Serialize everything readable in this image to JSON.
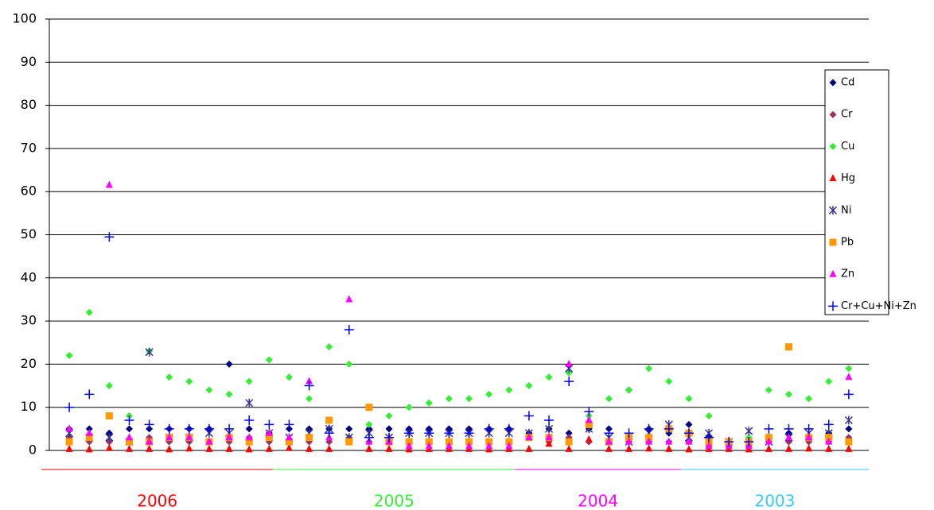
{
  "chart_data": {
    "type": "scatter",
    "x": [
      1,
      2,
      3,
      4,
      5,
      6,
      7,
      8,
      9,
      10,
      11,
      12,
      13,
      14,
      15,
      16,
      17,
      18,
      19,
      20,
      21,
      22,
      23,
      24,
      25,
      26,
      27,
      28,
      29,
      30,
      31,
      32,
      33,
      34,
      35,
      36,
      37,
      38,
      39,
      40
    ],
    "xlim": [
      0,
      41
    ],
    "ylim": [
      0,
      100
    ],
    "yticks": [
      0,
      10,
      20,
      30,
      40,
      50,
      60,
      70,
      80,
      90,
      100
    ],
    "grid": true,
    "legend": "right",
    "series": [
      {
        "name": "Cd",
        "color": "#000080",
        "marker": "diamond",
        "values": [
          5,
          5,
          4,
          5,
          5,
          5,
          5,
          5,
          20,
          5,
          4,
          5,
          5,
          5,
          5,
          5,
          5,
          5,
          5,
          5,
          5,
          5,
          5,
          4,
          5,
          4,
          5,
          5,
          14,
          5,
          4,
          6,
          3,
          2,
          2,
          3,
          4,
          3,
          4,
          5
        ]
      },
      {
        "name": "Cr",
        "color": "#993366",
        "marker": "diamond",
        "values": [
          3,
          2,
          2,
          2,
          3,
          2,
          2,
          2,
          2,
          3,
          2,
          2,
          2,
          2,
          3,
          2,
          2,
          2,
          2,
          2,
          2,
          2,
          2,
          3,
          2,
          3,
          2,
          2,
          2,
          2,
          2,
          2,
          1,
          1,
          1,
          2,
          2,
          2,
          2,
          3
        ]
      },
      {
        "name": "Cu",
        "color": "#33ee33",
        "marker": "diamond",
        "values": [
          22,
          32,
          15,
          8,
          23,
          17,
          16,
          14,
          13,
          16,
          21,
          17,
          12,
          24,
          20,
          6,
          8,
          10,
          11,
          12,
          12,
          13,
          14,
          15,
          17,
          18,
          8,
          12,
          14,
          19,
          16,
          12,
          8,
          2,
          3,
          14,
          13,
          12,
          16,
          19
        ]
      },
      {
        "name": "Hg",
        "color": "#ff0000",
        "marker": "triangle",
        "values": [
          0.3,
          0.2,
          0.5,
          0.3,
          0.3,
          0.2,
          0.4,
          0.3,
          0.3,
          0.2,
          0.3,
          0.5,
          0.3,
          0.3,
          2.5,
          0.3,
          0.3,
          0.2,
          0.3,
          0.3,
          0.3,
          0.2,
          0.3,
          0.3,
          1.5,
          0.3,
          2.5,
          0.3,
          0.3,
          0.4,
          0.3,
          0.2,
          0.3,
          0.3,
          0.2,
          0.3,
          0.3,
          0.4,
          0.3,
          0.3
        ]
      },
      {
        "name": "Ni",
        "color": "#333399",
        "marker": "star",
        "values": [
          4,
          3,
          3,
          2,
          22.8,
          3,
          3,
          4,
          4,
          11,
          4,
          3,
          4,
          5,
          3,
          4,
          3,
          4,
          4,
          4,
          4,
          4,
          4,
          4,
          5,
          19,
          5,
          3,
          2,
          4,
          6,
          3,
          4,
          2,
          4.5,
          2,
          3,
          4,
          4,
          7
        ]
      },
      {
        "name": "Pb",
        "color": "#ff9900",
        "marker": "square",
        "values": [
          2,
          3,
          8,
          2,
          2,
          3,
          3,
          2,
          3,
          2,
          3,
          2,
          3,
          7,
          2,
          10,
          2,
          2,
          2,
          2,
          2,
          2,
          2,
          3,
          3,
          2,
          6,
          2,
          3,
          3,
          5,
          4,
          2,
          2,
          2,
          3,
          24,
          3,
          3,
          2
        ]
      },
      {
        "name": "Zn",
        "color": "#ff00ff",
        "marker": "triangle",
        "values": [
          5,
          4,
          61.5,
          3,
          2,
          3,
          3,
          2,
          3,
          3,
          4,
          3,
          16,
          3,
          35,
          2,
          2,
          1,
          1,
          1,
          1,
          1,
          1,
          3,
          3,
          20,
          7,
          2,
          2,
          2,
          2,
          2,
          1,
          1,
          1,
          2,
          3,
          3,
          2,
          17
        ]
      },
      {
        "name": "Cr+Cu+Ni+Zn",
        "color": "#0000ff",
        "marker": "plus",
        "values": [
          10,
          13,
          49.5,
          7,
          6,
          5,
          5,
          5,
          5,
          7,
          6,
          6,
          15,
          4,
          28,
          3,
          3,
          4,
          4,
          4,
          4,
          5,
          5,
          8,
          7,
          16,
          9,
          4,
          4,
          5,
          5,
          4,
          3,
          2,
          2,
          5,
          5,
          5,
          6,
          13
        ]
      }
    ],
    "periods": [
      {
        "label": "2006",
        "start": 0,
        "end": 11.2,
        "color": "#ff0000"
      },
      {
        "label": "2005",
        "start": 11.2,
        "end": 23.3,
        "color": "#33ee33"
      },
      {
        "label": "2004",
        "start": 23.3,
        "end": 31.6,
        "color": "#ff00ff"
      },
      {
        "label": "2003",
        "start": 31.6,
        "end": 41,
        "color": "#33ccee"
      }
    ]
  }
}
